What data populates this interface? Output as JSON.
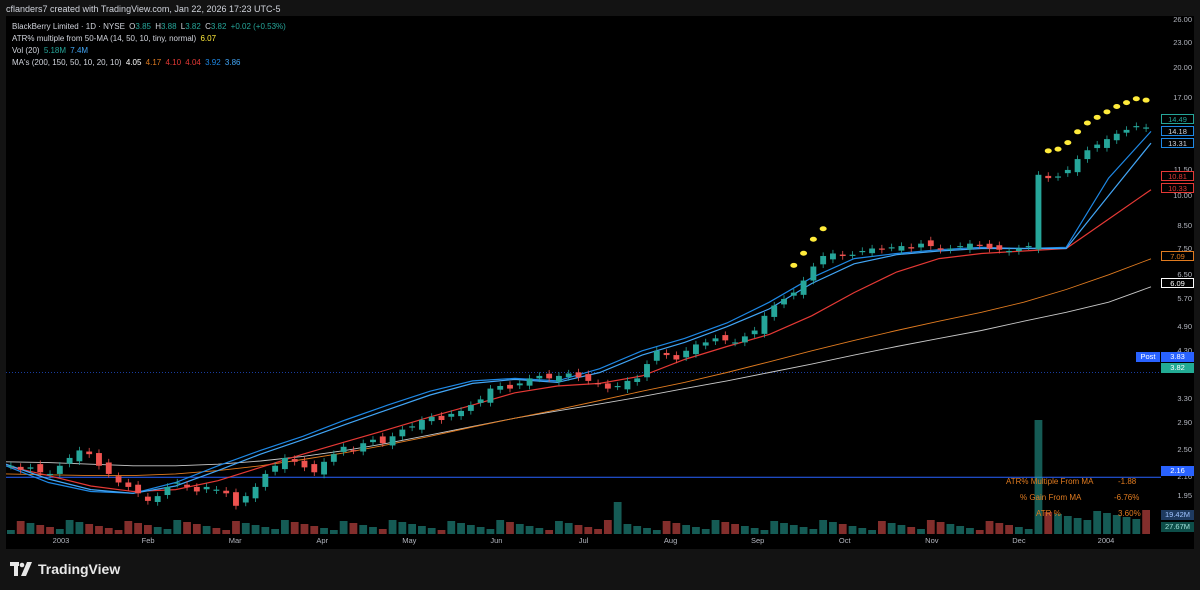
{
  "header": {
    "credit": "cflanders7 created with TradingView.com, Jan 22, 2026 17:23 UTC-5"
  },
  "legend": {
    "symbol_line": "BlackBerry Limited · 1D · NYSE",
    "open_label": "O",
    "open": "3.85",
    "high_label": "H",
    "high": "3.88",
    "low_label": "L",
    "low": "3.82",
    "close_label": "C",
    "close": "3.82",
    "change": "+0.02 (+0.53%)",
    "atr_label": "ATR% multiple from 50-MA (14, 50, 10, tiny, normal)",
    "atr_value": "6.07",
    "vol_label": "Vol (20)",
    "vol_value": "5.18M",
    "vol_ma": "7.4M",
    "ma_label": "MA's (200, 150, 50, 10, 20, 10)",
    "ma_values": [
      "4.05",
      "4.17",
      "4.10",
      "4.04",
      "3.92",
      "3.86"
    ]
  },
  "indicator_panel": {
    "rows": [
      {
        "label": "ATR% Multiple From MA",
        "value": "-1.88"
      },
      {
        "label": "% Gain From MA",
        "value": "-6.76%"
      },
      {
        "label": "ATR %",
        "value": "3.60%"
      }
    ]
  },
  "price_scale_boxes": {
    "b1": "14.49",
    "b2": "14.18",
    "b3": "13.31",
    "b4": "10.81",
    "b5": "10.33",
    "b6": "7.09",
    "b7": "6.09",
    "post_label": "Post",
    "post_value": "3.83",
    "last_value": "3.82",
    "hline_value": "2.16",
    "vol1": "19.42M",
    "vol2": "27.67M"
  },
  "colors": {
    "up": "#26a69a",
    "down": "#ef5350",
    "ma200": "#c9c9c9",
    "ma150": "#e07b20",
    "ma50": "#e53935",
    "ma10": "#1e88e5",
    "ma20": "#42a5f5",
    "dots": "#ffeb3b",
    "hline": "#2962ff",
    "post": "#2962ff",
    "last": "#22ab94"
  },
  "footer": {
    "brand": "TradingView",
    "logo_icon": "tradingview-logo-icon"
  },
  "chart_data": {
    "type": "candlestick",
    "y_scale": "log",
    "ylim": [
      1.75,
      26.0
    ],
    "y_ticks": [
      "26.00",
      "23.00",
      "20.00",
      "17.00",
      "14.00",
      "11.50",
      "10.00",
      "8.50",
      "7.50",
      "6.50",
      "5.70",
      "4.90",
      "4.30",
      "3.30",
      "2.90",
      "2.50",
      "2.16",
      "1.95"
    ],
    "x_ticks": [
      "2003",
      "Feb",
      "Mar",
      "Apr",
      "May",
      "Jun",
      "Jul",
      "Aug",
      "Sep",
      "Oct",
      "Nov",
      "Dec",
      "2004"
    ],
    "close_series": [
      2.3,
      2.25,
      2.28,
      2.22,
      2.2,
      2.3,
      2.4,
      2.5,
      2.45,
      2.3,
      2.2,
      2.1,
      2.05,
      1.98,
      1.9,
      1.95,
      2.05,
      2.1,
      2.05,
      2.0,
      2.05,
      2.02,
      1.98,
      1.85,
      1.95,
      2.05,
      2.2,
      2.3,
      2.4,
      2.35,
      2.28,
      2.22,
      2.35,
      2.45,
      2.55,
      2.5,
      2.6,
      2.65,
      2.6,
      2.7,
      2.8,
      2.85,
      2.95,
      3.0,
      2.95,
      3.05,
      3.1,
      3.2,
      3.3,
      3.5,
      3.55,
      3.5,
      3.6,
      3.7,
      3.75,
      3.7,
      3.75,
      3.8,
      3.72,
      3.65,
      3.6,
      3.5,
      3.55,
      3.65,
      3.7,
      4.0,
      4.3,
      4.2,
      4.1,
      4.3,
      4.45,
      4.5,
      4.6,
      4.55,
      4.5,
      4.65,
      4.8,
      5.2,
      5.5,
      5.7,
      5.9,
      6.3,
      6.8,
      7.2,
      7.3,
      7.2,
      7.25,
      7.4,
      7.5,
      7.45,
      7.55,
      7.6,
      7.5,
      7.7,
      7.6,
      7.45,
      7.5,
      7.6,
      7.7,
      7.65,
      7.5,
      7.45,
      7.4,
      7.5,
      7.6,
      11.2,
      11.0,
      11.1,
      11.5,
      12.2,
      12.8,
      13.2,
      13.6,
      14.0,
      14.3,
      14.6,
      14.49
    ],
    "series": [
      {
        "name": "MA 200",
        "values": [
          2.35,
          2.34,
          2.32,
          2.3,
          2.3,
          2.32,
          2.36,
          2.42,
          2.5,
          2.6,
          2.72,
          2.85,
          2.98,
          3.1,
          3.22,
          3.35,
          3.5,
          3.65,
          3.82,
          4.0,
          4.2,
          4.4,
          4.6,
          4.8,
          5.05,
          5.3,
          5.6,
          6.09
        ]
      },
      {
        "name": "MA 150",
        "values": [
          2.2,
          2.19,
          2.18,
          2.18,
          2.2,
          2.24,
          2.3,
          2.38,
          2.47,
          2.58,
          2.7,
          2.84,
          2.98,
          3.12,
          3.28,
          3.45,
          3.62,
          3.82,
          4.05,
          4.3,
          4.55,
          4.8,
          5.05,
          5.3,
          5.6,
          6.0,
          6.5,
          7.09
        ]
      },
      {
        "name": "MA 50",
        "values": [
          2.3,
          2.18,
          2.06,
          2.0,
          2.02,
          2.12,
          2.28,
          2.45,
          2.62,
          2.8,
          3.0,
          3.2,
          3.42,
          3.55,
          3.6,
          3.75,
          4.1,
          4.4,
          4.7,
          5.2,
          5.9,
          6.6,
          7.1,
          7.3,
          7.4,
          7.5,
          8.8,
          10.33
        ]
      },
      {
        "name": "MA 10",
        "values": [
          2.3,
          2.1,
          2.0,
          1.98,
          2.1,
          2.3,
          2.5,
          2.7,
          2.95,
          3.2,
          3.45,
          3.65,
          3.7,
          3.65,
          3.9,
          4.3,
          4.6,
          5.0,
          5.6,
          6.4,
          7.1,
          7.3,
          7.45,
          7.55,
          7.5,
          7.55,
          11.0,
          14.18
        ]
      },
      {
        "name": "MA 20",
        "values": [
          2.32,
          2.14,
          2.02,
          1.98,
          2.06,
          2.24,
          2.45,
          2.65,
          2.88,
          3.12,
          3.38,
          3.6,
          3.68,
          3.62,
          3.82,
          4.2,
          4.5,
          4.9,
          5.4,
          6.2,
          6.9,
          7.25,
          7.4,
          7.5,
          7.5,
          7.5,
          10.0,
          13.31
        ]
      }
    ]
  }
}
